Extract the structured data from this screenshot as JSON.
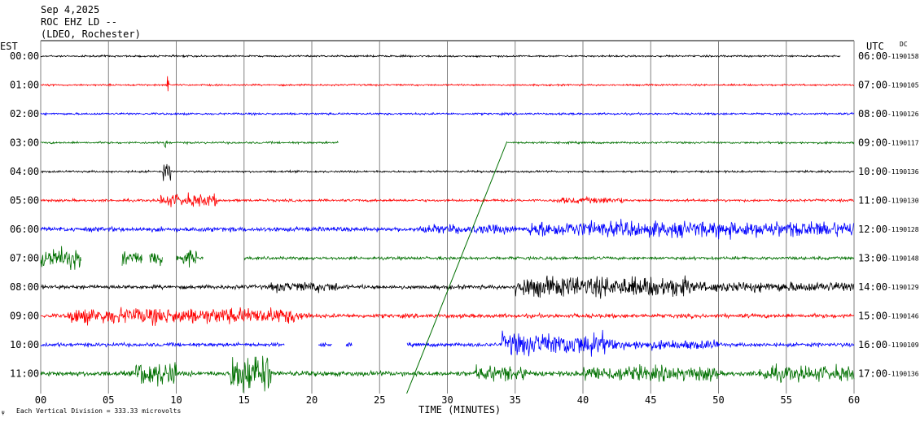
{
  "header": {
    "date": "Sep 4,2025",
    "station": "ROC EHZ LD --",
    "network": "(LDEO, Rochester)"
  },
  "axes": {
    "left_title": "EST",
    "right_title": "UTC",
    "dc_label": "DC",
    "xlabel": "TIME (MINUTES)",
    "footer": "Each Vertical Division = 333.33 microvolts"
  },
  "colors": {
    "black": "#000000",
    "red": "#ff0000",
    "blue": "#0000ff",
    "green": "#007000",
    "grid": "#808080"
  },
  "chart_data": {
    "type": "line",
    "xlim": [
      0,
      60
    ],
    "x_ticks": [
      "00",
      "05",
      "10",
      "15",
      "20",
      "25",
      "30",
      "35",
      "40",
      "45",
      "50",
      "55",
      "60"
    ],
    "rows": [
      {
        "est": "00:00",
        "utc": "06:00",
        "dc": "-1190158",
        "color": "black",
        "amp": 0.7,
        "end": 59,
        "events": []
      },
      {
        "est": "01:00",
        "utc": "07:00",
        "dc": "-1190105",
        "color": "red",
        "amp": 0.7,
        "end": 60,
        "events": [
          [
            9.3,
            9.5,
            10
          ]
        ]
      },
      {
        "est": "02:00",
        "utc": "08:00",
        "dc": "-1190126",
        "color": "blue",
        "amp": 0.8,
        "end": 60,
        "events": []
      },
      {
        "est": "03:00",
        "utc": "09:00",
        "dc": "-1190117",
        "color": "green",
        "amp": 0.8,
        "end": 60,
        "gaps": [
          [
            22,
            34.4
          ]
        ],
        "events": [
          [
            9.1,
            9.4,
            6
          ]
        ]
      },
      {
        "est": "04:00",
        "utc": "10:00",
        "dc": "-1190136",
        "color": "black",
        "amp": 0.8,
        "end": 60,
        "events": [
          [
            9.0,
            9.6,
            8
          ]
        ]
      },
      {
        "est": "05:00",
        "utc": "11:00",
        "dc": "-1190130",
        "color": "red",
        "amp": 1.0,
        "end": 60,
        "events": [
          [
            8.8,
            13,
            5
          ],
          [
            38,
            43,
            2.5
          ]
        ]
      },
      {
        "est": "06:00",
        "utc": "12:00",
        "dc": "-1190128",
        "color": "blue",
        "amp": 1.8,
        "end": 60,
        "events": [
          [
            28,
            35,
            2
          ],
          [
            36,
            60,
            3.5
          ]
        ]
      },
      {
        "est": "07:00",
        "utc": "13:00",
        "dc": "-1190148",
        "color": "green",
        "amp": 1.2,
        "end": 60,
        "gaps": [
          [
            3,
            6
          ],
          [
            7.5,
            8
          ],
          [
            9,
            10
          ],
          [
            12,
            15
          ]
        ],
        "events": [
          [
            0,
            3,
            7
          ],
          [
            6,
            7.5,
            5
          ],
          [
            8,
            9,
            5
          ],
          [
            10,
            11.5,
            5
          ]
        ]
      },
      {
        "est": "08:00",
        "utc": "14:00",
        "dc": "-1190129",
        "color": "black",
        "amp": 1.6,
        "end": 60,
        "events": [
          [
            17,
            22,
            2.5
          ],
          [
            35,
            48,
            5
          ],
          [
            48,
            60,
            2.5
          ]
        ]
      },
      {
        "est": "09:00",
        "utc": "15:00",
        "dc": "-1190146",
        "color": "red",
        "amp": 1.6,
        "end": 60,
        "events": [
          [
            2,
            19,
            4
          ],
          [
            19,
            20,
            2
          ]
        ]
      },
      {
        "est": "10:00",
        "utc": "16:00",
        "dc": "-1190109",
        "color": "blue",
        "amp": 1.5,
        "end": 60,
        "gaps": [
          [
            18,
            20.5
          ],
          [
            21.5,
            22.5
          ],
          [
            23,
            27
          ]
        ],
        "events": [
          [
            34,
            42,
            6
          ],
          [
            42,
            50,
            2.5
          ]
        ]
      },
      {
        "est": "11:00",
        "utc": "17:00",
        "dc": "-1190136",
        "color": "green",
        "amp": 2.0,
        "end": 60,
        "events": [
          [
            7,
            10,
            5
          ],
          [
            14,
            17,
            8
          ],
          [
            32,
            36,
            3
          ],
          [
            40,
            50,
            3
          ],
          [
            53,
            60,
            3
          ]
        ]
      }
    ]
  }
}
